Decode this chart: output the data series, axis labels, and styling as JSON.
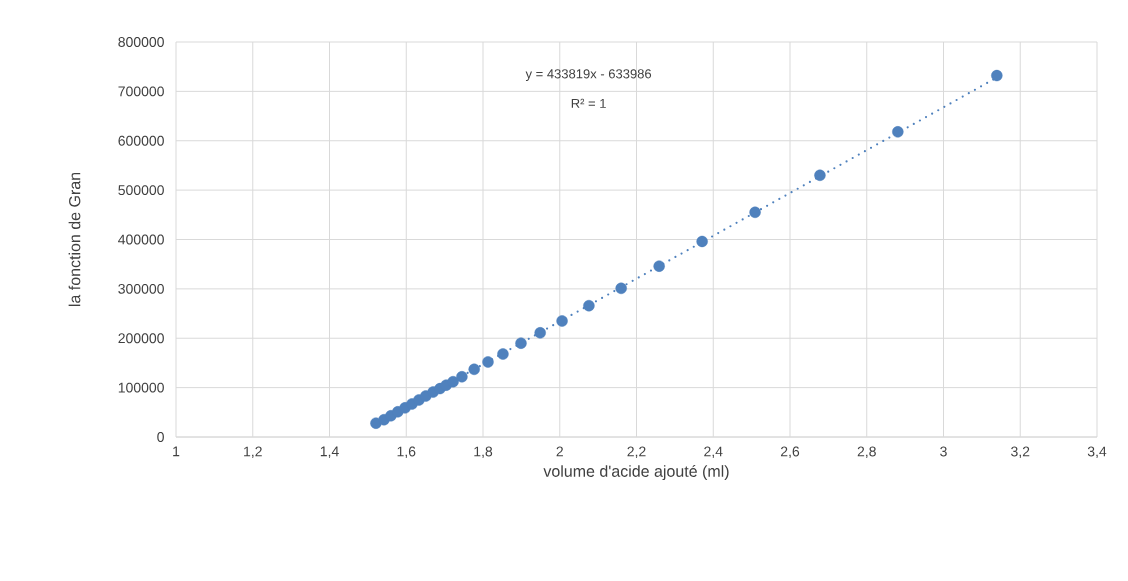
{
  "chart_data": {
    "type": "scatter",
    "xlabel": "volume d'acide ajouté (ml)",
    "ylabel": "la fonction de Gran",
    "annotations": [
      "y = 433819x - 633986",
      "R² = 1"
    ],
    "series": [
      {
        "color": "#4f81bd",
        "x": [
          1.521,
          1.542,
          1.56,
          1.578,
          1.597,
          1.615,
          1.633,
          1.651,
          1.67,
          1.688,
          1.704,
          1.722,
          1.745,
          1.777,
          1.813,
          1.852,
          1.899,
          1.949,
          2.006,
          2.076,
          2.16,
          2.259,
          2.371,
          2.509,
          2.678,
          2.881,
          3.139
        ],
        "values": [
          28000,
          35000,
          43000,
          51000,
          59000,
          67000,
          75000,
          83000,
          91000,
          98000,
          105000,
          112000,
          122000,
          137000,
          152000,
          168000,
          190000,
          211000,
          235000,
          266000,
          301000,
          346000,
          396000,
          455000,
          530000,
          618000,
          732000
        ]
      },
      {
        "type": "line",
        "color": "#4f81bd",
        "line_style": "dotted",
        "marker": "none",
        "x": [
          1.521,
          3.139
        ],
        "values": [
          26000,
          728000
        ]
      }
    ],
    "xlim": [
      1,
      3.4
    ],
    "ylim": [
      0,
      800000
    ],
    "xticks": [
      1,
      {
        "value": 1.2,
        "label": "1,2"
      },
      {
        "value": 1.4,
        "label": "1,4"
      },
      {
        "value": 1.6,
        "label": "1,6"
      },
      {
        "value": 1.8,
        "label": "1,8"
      },
      2,
      {
        "value": 2.2,
        "label": "2,2"
      },
      {
        "value": 2.4,
        "label": "2,4"
      },
      {
        "value": 2.6,
        "label": "2,6"
      },
      {
        "value": 2.8,
        "label": "2,8"
      },
      3,
      {
        "value": 3.2,
        "label": "3,2"
      },
      {
        "value": 3.4,
        "label": "3,4"
      }
    ],
    "yticks": [
      0,
      100000,
      200000,
      300000,
      400000,
      500000,
      600000,
      700000,
      800000
    ],
    "grid": true,
    "marker": "circle"
  }
}
